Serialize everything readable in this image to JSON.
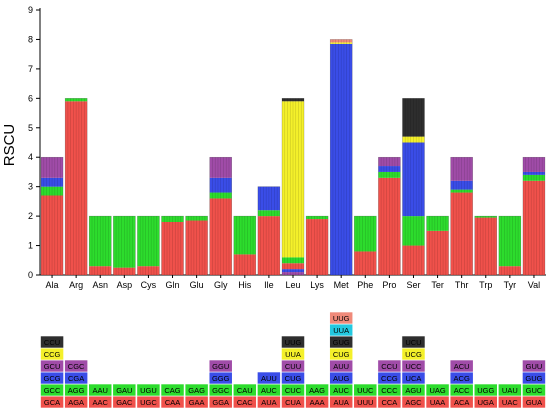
{
  "chart_data": {
    "type": "bar",
    "ylabel": "RSCU",
    "ylim": [
      0,
      9
    ],
    "yticks": [
      0,
      1,
      2,
      3,
      4,
      5,
      6,
      7,
      8,
      9
    ],
    "categories": [
      "Ala",
      "Arg",
      "Asn",
      "Asp",
      "Cys",
      "Gln",
      "Glu",
      "Gly",
      "His",
      "Ile",
      "Leu",
      "Lys",
      "Met",
      "Phe",
      "Pro",
      "Ser",
      "Ter",
      "Thr",
      "Trp",
      "Tyr",
      "Val"
    ],
    "colors": {
      "red": "#f0514b",
      "green": "#2ddc2d",
      "blue": "#3a4de8",
      "purple": "#a04ca8",
      "yellow": "#f4f02a",
      "black": "#2e2e2e",
      "cyan": "#24c9e0",
      "salmon": "#f08a7a"
    },
    "stacks": [
      {
        "aa": "Ala",
        "layers": [
          {
            "color": "red",
            "value": 2.7
          },
          {
            "color": "green",
            "value": 0.3
          },
          {
            "color": "blue",
            "value": 0.3
          },
          {
            "color": "purple",
            "value": 0.7
          }
        ]
      },
      {
        "aa": "Arg",
        "layers": [
          {
            "color": "red",
            "value": 5.9
          },
          {
            "color": "green",
            "value": 0.1
          }
        ]
      },
      {
        "aa": "Asn",
        "layers": [
          {
            "color": "red",
            "value": 0.3
          },
          {
            "color": "green",
            "value": 1.7
          }
        ]
      },
      {
        "aa": "Asp",
        "layers": [
          {
            "color": "red",
            "value": 0.25
          },
          {
            "color": "green",
            "value": 1.75
          }
        ]
      },
      {
        "aa": "Cys",
        "layers": [
          {
            "color": "red",
            "value": 0.3
          },
          {
            "color": "green",
            "value": 1.7
          }
        ]
      },
      {
        "aa": "Gln",
        "layers": [
          {
            "color": "red",
            "value": 1.8
          },
          {
            "color": "green",
            "value": 0.2
          }
        ]
      },
      {
        "aa": "Glu",
        "layers": [
          {
            "color": "red",
            "value": 1.85
          },
          {
            "color": "green",
            "value": 0.15
          }
        ]
      },
      {
        "aa": "Gly",
        "layers": [
          {
            "color": "red",
            "value": 2.6
          },
          {
            "color": "green",
            "value": 0.2
          },
          {
            "color": "blue",
            "value": 0.5
          },
          {
            "color": "purple",
            "value": 0.7
          }
        ]
      },
      {
        "aa": "His",
        "layers": [
          {
            "color": "red",
            "value": 0.7
          },
          {
            "color": "green",
            "value": 1.3
          }
        ]
      },
      {
        "aa": "Ile",
        "layers": [
          {
            "color": "red",
            "value": 2.0
          },
          {
            "color": "green",
            "value": 0.2
          },
          {
            "color": "blue",
            "value": 0.8
          }
        ]
      },
      {
        "aa": "Leu",
        "layers": [
          {
            "color": "purple",
            "value": 0.1
          },
          {
            "color": "blue",
            "value": 0.1
          },
          {
            "color": "red",
            "value": 0.2
          },
          {
            "color": "green",
            "value": 0.2
          },
          {
            "color": "yellow",
            "value": 5.3
          },
          {
            "color": "black",
            "value": 0.1
          }
        ]
      },
      {
        "aa": "Lys",
        "layers": [
          {
            "color": "red",
            "value": 1.9
          },
          {
            "color": "green",
            "value": 0.1
          }
        ]
      },
      {
        "aa": "Met",
        "layers": [
          {
            "color": "blue",
            "value": 7.85
          },
          {
            "color": "yellow",
            "value": 0.05
          },
          {
            "color": "salmon",
            "value": 0.1
          }
        ]
      },
      {
        "aa": "Phe",
        "layers": [
          {
            "color": "red",
            "value": 0.8
          },
          {
            "color": "green",
            "value": 1.2
          }
        ]
      },
      {
        "aa": "Pro",
        "layers": [
          {
            "color": "red",
            "value": 3.3
          },
          {
            "color": "green",
            "value": 0.2
          },
          {
            "color": "blue",
            "value": 0.2
          },
          {
            "color": "purple",
            "value": 0.3
          }
        ]
      },
      {
        "aa": "Ser",
        "layers": [
          {
            "color": "red",
            "value": 1.0
          },
          {
            "color": "green",
            "value": 1.0
          },
          {
            "color": "blue",
            "value": 2.5
          },
          {
            "color": "yellow",
            "value": 0.2
          },
          {
            "color": "black",
            "value": 1.3
          }
        ]
      },
      {
        "aa": "Ter",
        "layers": [
          {
            "color": "red",
            "value": 1.5
          },
          {
            "color": "green",
            "value": 0.5
          }
        ]
      },
      {
        "aa": "Thr",
        "layers": [
          {
            "color": "red",
            "value": 2.8
          },
          {
            "color": "green",
            "value": 0.1
          },
          {
            "color": "blue",
            "value": 0.3
          },
          {
            "color": "purple",
            "value": 0.8
          }
        ]
      },
      {
        "aa": "Trp",
        "layers": [
          {
            "color": "red",
            "value": 1.95
          },
          {
            "color": "green",
            "value": 0.05
          }
        ]
      },
      {
        "aa": "Tyr",
        "layers": [
          {
            "color": "red",
            "value": 0.3
          },
          {
            "color": "green",
            "value": 1.7
          }
        ]
      },
      {
        "aa": "Val",
        "layers": [
          {
            "color": "red",
            "value": 3.2
          },
          {
            "color": "green",
            "value": 0.2
          },
          {
            "color": "blue",
            "value": 0.1
          },
          {
            "color": "purple",
            "value": 0.5
          }
        ]
      }
    ],
    "codon_table": [
      {
        "aa": "Ala",
        "codons": [
          {
            "c": "GCA",
            "color": "red"
          },
          {
            "c": "GCC",
            "color": "green"
          },
          {
            "c": "GCG",
            "color": "blue"
          },
          {
            "c": "GCU",
            "color": "purple"
          },
          {
            "c": "CCG",
            "color": "yellow"
          },
          {
            "c": "CCU",
            "color": "black"
          }
        ]
      },
      {
        "aa": "Arg",
        "codons": [
          {
            "c": "AGA",
            "color": "red"
          },
          {
            "c": "AGG",
            "color": "green"
          },
          {
            "c": "CGA",
            "color": "blue"
          },
          {
            "c": "CGC",
            "color": "purple"
          }
        ]
      },
      {
        "aa": "Asn",
        "codons": [
          {
            "c": "AAC",
            "color": "red"
          },
          {
            "c": "AAU",
            "color": "green"
          }
        ]
      },
      {
        "aa": "Asp",
        "codons": [
          {
            "c": "GAC",
            "color": "red"
          },
          {
            "c": "GAU",
            "color": "green"
          }
        ]
      },
      {
        "aa": "Cys",
        "codons": [
          {
            "c": "UGC",
            "color": "red"
          },
          {
            "c": "UGU",
            "color": "green"
          }
        ]
      },
      {
        "aa": "Gln",
        "codons": [
          {
            "c": "CAA",
            "color": "red"
          },
          {
            "c": "CAG",
            "color": "green"
          }
        ]
      },
      {
        "aa": "Glu",
        "codons": [
          {
            "c": "GAA",
            "color": "red"
          },
          {
            "c": "GAG",
            "color": "green"
          }
        ]
      },
      {
        "aa": "Gly",
        "codons": [
          {
            "c": "GGA",
            "color": "red"
          },
          {
            "c": "GGC",
            "color": "green"
          },
          {
            "c": "GGG",
            "color": "blue"
          },
          {
            "c": "GGU",
            "color": "purple"
          }
        ]
      },
      {
        "aa": "His",
        "codons": [
          {
            "c": "CAC",
            "color": "red"
          },
          {
            "c": "CAU",
            "color": "green"
          }
        ]
      },
      {
        "aa": "Ile",
        "codons": [
          {
            "c": "AUA",
            "color": "red"
          },
          {
            "c": "AUC",
            "color": "green"
          },
          {
            "c": "AUU",
            "color": "blue"
          }
        ]
      },
      {
        "aa": "Leu",
        "codons": [
          {
            "c": "CUA",
            "color": "red"
          },
          {
            "c": "CUC",
            "color": "green"
          },
          {
            "c": "CUG",
            "color": "blue"
          },
          {
            "c": "CUU",
            "color": "purple"
          },
          {
            "c": "UUA",
            "color": "yellow"
          },
          {
            "c": "UUG",
            "color": "black"
          }
        ]
      },
      {
        "aa": "Lys",
        "codons": [
          {
            "c": "AAA",
            "color": "red"
          },
          {
            "c": "AAG",
            "color": "green"
          }
        ]
      },
      {
        "aa": "Met",
        "codons": [
          {
            "c": "AUA",
            "color": "red"
          },
          {
            "c": "AUC",
            "color": "green"
          },
          {
            "c": "AUG",
            "color": "blue"
          },
          {
            "c": "AUU",
            "color": "purple"
          },
          {
            "c": "CUG",
            "color": "yellow"
          },
          {
            "c": "GUG",
            "color": "black"
          },
          {
            "c": "UUA",
            "color": "cyan"
          },
          {
            "c": "UUG",
            "color": "salmon"
          }
        ]
      },
      {
        "aa": "Phe",
        "codons": [
          {
            "c": "UUU",
            "color": "red"
          },
          {
            "c": "UUC",
            "color": "green"
          }
        ]
      },
      {
        "aa": "Pro",
        "codons": [
          {
            "c": "CCA",
            "color": "red"
          },
          {
            "c": "CCC",
            "color": "green"
          },
          {
            "c": "CCG",
            "color": "blue"
          },
          {
            "c": "CCU",
            "color": "purple"
          }
        ]
      },
      {
        "aa": "Ser",
        "codons": [
          {
            "c": "AGC",
            "color": "red"
          },
          {
            "c": "AGU",
            "color": "green"
          },
          {
            "c": "UCA",
            "color": "blue"
          },
          {
            "c": "UCC",
            "color": "purple"
          },
          {
            "c": "UCG",
            "color": "yellow"
          },
          {
            "c": "UCU",
            "color": "black"
          }
        ]
      },
      {
        "aa": "Ter",
        "codons": [
          {
            "c": "UAA",
            "color": "red"
          },
          {
            "c": "UAG",
            "color": "green"
          }
        ]
      },
      {
        "aa": "Thr",
        "codons": [
          {
            "c": "ACA",
            "color": "red"
          },
          {
            "c": "ACC",
            "color": "green"
          },
          {
            "c": "ACG",
            "color": "blue"
          },
          {
            "c": "ACU",
            "color": "purple"
          }
        ]
      },
      {
        "aa": "Trp",
        "codons": [
          {
            "c": "UGA",
            "color": "red"
          },
          {
            "c": "UGG",
            "color": "green"
          }
        ]
      },
      {
        "aa": "Tyr",
        "codons": [
          {
            "c": "UAC",
            "color": "red"
          },
          {
            "c": "UAU",
            "color": "green"
          }
        ]
      },
      {
        "aa": "Val",
        "codons": [
          {
            "c": "GUA",
            "color": "red"
          },
          {
            "c": "GUC",
            "color": "green"
          },
          {
            "c": "GUG",
            "color": "blue"
          },
          {
            "c": "GUU",
            "color": "purple"
          }
        ]
      }
    ]
  }
}
